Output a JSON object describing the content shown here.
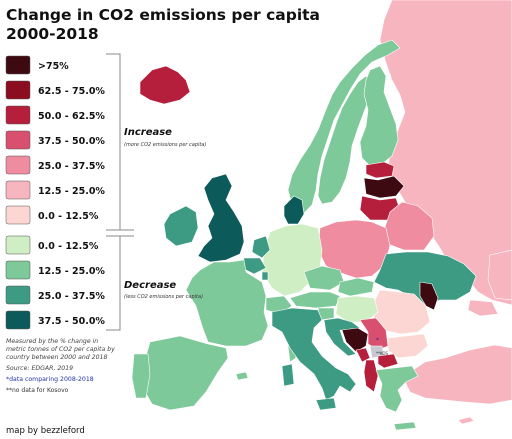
{
  "title": {
    "line1": "Change in CO2 emissions per capita",
    "line2": "2000-2018"
  },
  "legend": {
    "increase_title": "Increase",
    "increase_note": "(more CO2 emissions per capita)",
    "decrease_title": "Decrease",
    "decrease_note": "(less CO2 emissions per capita)",
    "increase_items": [
      {
        "label": ">75%",
        "color": "#3d0a12"
      },
      {
        "label": "62.5 - 75.0%",
        "color": "#8b0d1f"
      },
      {
        "label": "50.0 - 62.5%",
        "color": "#b51f3c"
      },
      {
        "label": "37.5 - 50.0%",
        "color": "#d94f6f"
      },
      {
        "label": "25.0 - 37.5%",
        "color": "#ef8ca0"
      },
      {
        "label": "12.5 - 25.0%",
        "color": "#f7b5c0"
      },
      {
        "label": "0.0 - 12.5%",
        "color": "#fcd6d3"
      }
    ],
    "decrease_items": [
      {
        "label": "0.0 - 12.5%",
        "color": "#cfeec4"
      },
      {
        "label": "12.5 - 25.0%",
        "color": "#7ec99a"
      },
      {
        "label": "25.0 - 37.5%",
        "color": "#3e9b83"
      },
      {
        "label": "37.5 - 50.0%",
        "color": "#0d5a5a"
      }
    ]
  },
  "notes": {
    "line1": "Measured by the % change in",
    "line2": "metric tonnes of CO2 per capita by",
    "line3": "country between 2000 and 2018",
    "source": "Source: EDGAR, 2019",
    "data_note": "*data comparing 2008-2018",
    "kosovo_note": "**no data for Kosovo",
    "kosovo_label": "**KOS",
    "asterisk": "*"
  },
  "credit": "map by bezzleford",
  "regions": [
    {
      "name": "iceland",
      "color": "#b51f3c"
    },
    {
      "name": "norway",
      "color": "#7ec99a"
    },
    {
      "name": "sweden",
      "color": "#7ec99a"
    },
    {
      "name": "finland",
      "color": "#7ec99a"
    },
    {
      "name": "russia",
      "color": "#f7b5c0"
    },
    {
      "name": "estonia",
      "color": "#b51f3c"
    },
    {
      "name": "latvia",
      "color": "#3d0a12"
    },
    {
      "name": "lithuania",
      "color": "#b51f3c"
    },
    {
      "name": "belarus",
      "color": "#ef8ca0"
    },
    {
      "name": "poland",
      "color": "#ef8ca0"
    },
    {
      "name": "ukraine",
      "color": "#3e9b83"
    },
    {
      "name": "moldova",
      "color": "#3d0a12"
    },
    {
      "name": "romania",
      "color": "#fcd6d3"
    },
    {
      "name": "bulgaria",
      "color": "#fcd6d3"
    },
    {
      "name": "turkey",
      "color": "#f7b5c0"
    },
    {
      "name": "greece",
      "color": "#7ec99a"
    },
    {
      "name": "albania",
      "color": "#b51f3c"
    },
    {
      "name": "north-macedonia",
      "color": "#b51f3c"
    },
    {
      "name": "serbia",
      "color": "#d94f6f"
    },
    {
      "name": "montenegro",
      "color": "#b51f3c"
    },
    {
      "name": "bosnia",
      "color": "#3d0a12"
    },
    {
      "name": "croatia",
      "color": "#3e9b83"
    },
    {
      "name": "slovenia",
      "color": "#7ec99a"
    },
    {
      "name": "hungary",
      "color": "#cfeec4"
    },
    {
      "name": "slovakia",
      "color": "#7ec99a"
    },
    {
      "name": "czechia",
      "color": "#7ec99a"
    },
    {
      "name": "austria",
      "color": "#7ec99a"
    },
    {
      "name": "germany",
      "color": "#cfeec4"
    },
    {
      "name": "denmark",
      "color": "#0d5a5a"
    },
    {
      "name": "netherlands",
      "color": "#3e9b83"
    },
    {
      "name": "belgium",
      "color": "#3e9b83"
    },
    {
      "name": "luxembourg",
      "color": "#3e9b83"
    },
    {
      "name": "switzerland",
      "color": "#7ec99a"
    },
    {
      "name": "france",
      "color": "#7ec99a"
    },
    {
      "name": "italy",
      "color": "#3e9b83"
    },
    {
      "name": "spain",
      "color": "#7ec99a"
    },
    {
      "name": "portugal",
      "color": "#7ec99a"
    },
    {
      "name": "great-britain",
      "color": "#0d5a5a"
    },
    {
      "name": "ireland",
      "color": "#3e9b83"
    },
    {
      "name": "kazakhstan",
      "color": "#f7b5c0"
    },
    {
      "name": "georgia",
      "color": "#f7b5c0"
    },
    {
      "name": "cyprus",
      "color": "#f7b5c0"
    },
    {
      "name": "kosovo",
      "color": "#c8c8d0"
    }
  ]
}
